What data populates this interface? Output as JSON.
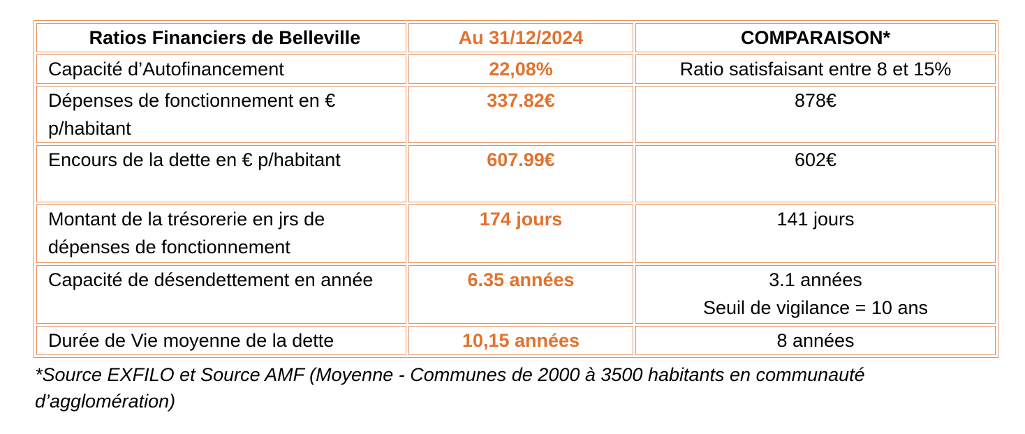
{
  "table": {
    "header": [
      "Ratios Financiers de Belleville",
      "Au 31/12/2024",
      "COMPARAISON*"
    ],
    "rows": [
      [
        "Capacité d’Autofinancement",
        "22,08%",
        "Ratio satisfaisant entre 8 et 15%"
      ],
      [
        "Dépenses de fonctionnement en € p/habitant",
        "337.82€",
        "878€"
      ],
      [
        "Encours de la dette en € p/habitant",
        "607.99€",
        "602€"
      ],
      [
        "Montant de la trésorerie en jrs de dépenses de fonctionnement",
        "174 jours",
        "141 jours"
      ],
      [
        "Capacité de désendettement en année",
        "6.35 années",
        [
          "3.1 années",
          "Seuil de vigilance = 10 ans"
        ]
      ],
      [
        "Durée de Vie moyenne de la dette",
        "10,15 années",
        "8 années"
      ]
    ]
  },
  "footnote": "*Source EXFILO et Source AMF (Moyenne - Communes de 2000 à 3500 habitants en communauté d’agglomération)"
}
